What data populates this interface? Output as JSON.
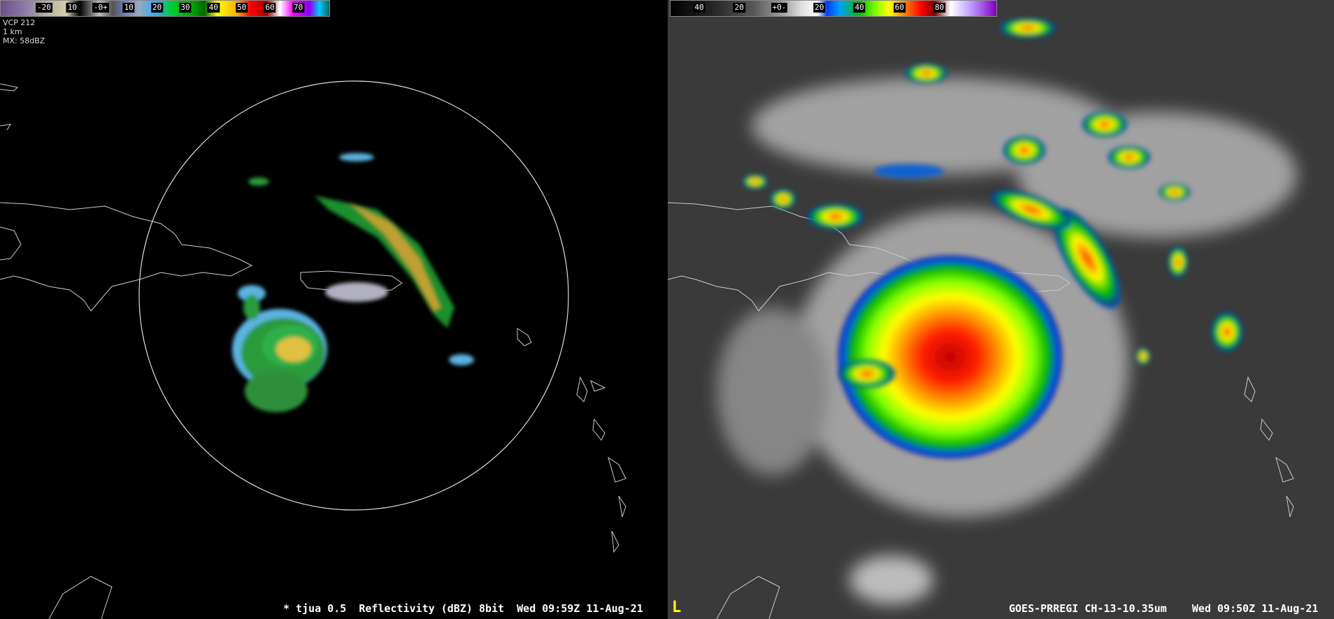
{
  "left_panel": {
    "colorbar_labels": [
      "-20",
      "10",
      "-0+",
      "10",
      "20",
      "30",
      "40",
      "50",
      "60",
      "70"
    ],
    "info": [
      "VCP 212",
      "1 km",
      "MX: 58dBZ"
    ],
    "status": "* tjua 0.5  Reflectivity (dBZ) 8bit  Wed 09:59Z 11-Aug-21"
  },
  "right_panel": {
    "colorbar_labels": [
      "40",
      "20",
      "+0-",
      "20",
      "40",
      "60",
      "80"
    ],
    "marker": "L",
    "status": "GOES-PRREGI CH-13-10.35um    Wed 09:50Z 11-Aug-21"
  }
}
